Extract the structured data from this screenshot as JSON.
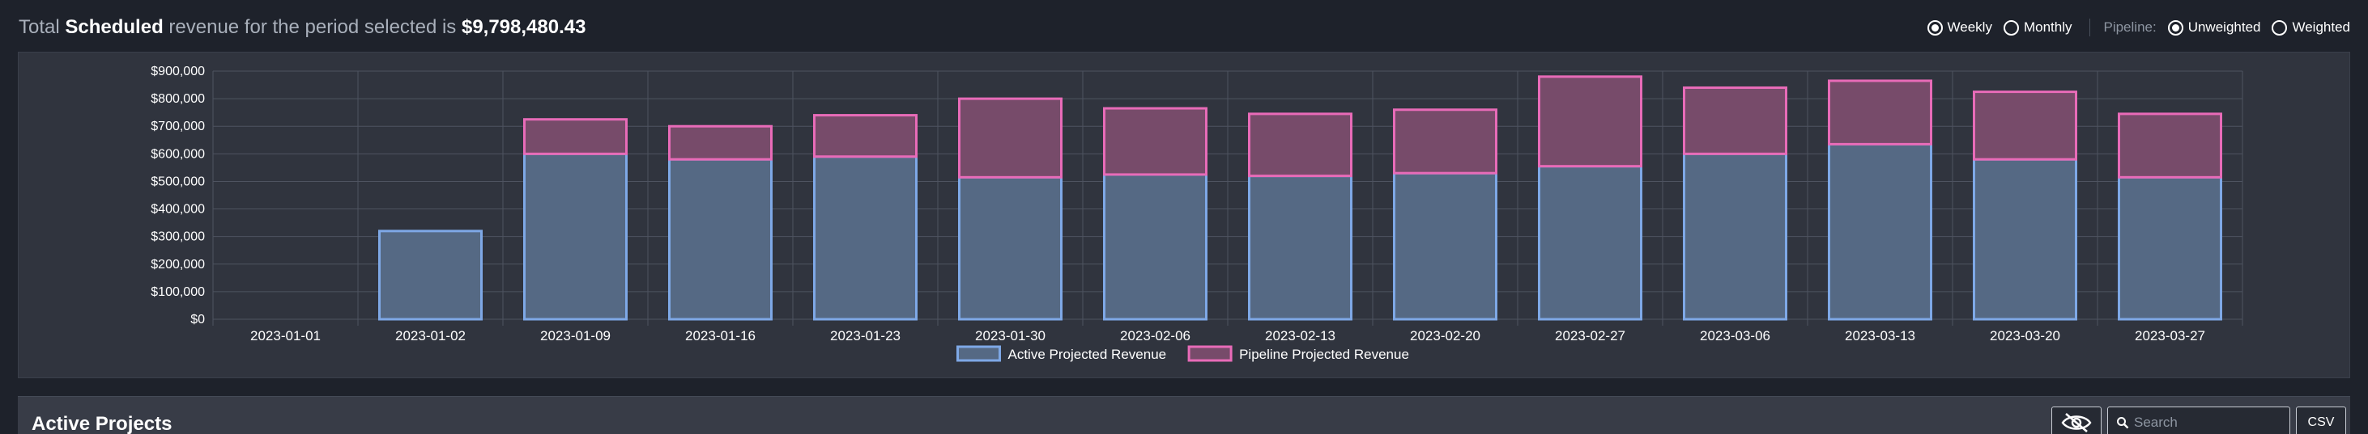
{
  "header": {
    "prefix": "Total",
    "emphasis": "Scheduled",
    "middle": "revenue for the period selected is",
    "total": "$9,798,480.43"
  },
  "period_options": [
    {
      "label": "Weekly",
      "checked": true
    },
    {
      "label": "Monthly",
      "checked": false
    }
  ],
  "pipeline": {
    "label": "Pipeline:",
    "options": [
      {
        "label": "Unweighted",
        "checked": true
      },
      {
        "label": "Weighted",
        "checked": false
      }
    ]
  },
  "chart_data": {
    "type": "bar",
    "stacked": true,
    "categories": [
      "2023-01-01",
      "2023-01-02",
      "2023-01-09",
      "2023-01-16",
      "2023-01-23",
      "2023-01-30",
      "2023-02-06",
      "2023-02-13",
      "2023-02-20",
      "2023-02-27",
      "2023-03-06",
      "2023-03-13",
      "2023-03-20",
      "2023-03-27"
    ],
    "series": [
      {
        "name": "Active Projected Revenue",
        "color": "#7ea8e6",
        "fill": "#556984",
        "values": [
          0,
          320000,
          600000,
          580000,
          590000,
          515000,
          525000,
          520000,
          530000,
          555000,
          600000,
          635000,
          580000,
          515000
        ]
      },
      {
        "name": "Pipeline Projected Revenue",
        "color": "#e86bb8",
        "fill": "#774b6a",
        "values": [
          0,
          0,
          125000,
          120000,
          150000,
          285000,
          240000,
          225000,
          230000,
          325000,
          240000,
          230000,
          245000,
          230000
        ]
      }
    ],
    "ylim": [
      0,
      900000
    ],
    "yticks": [
      "$0",
      "$100,000",
      "$200,000",
      "$300,000",
      "$400,000",
      "$500,000",
      "$600,000",
      "$700,000",
      "$800,000",
      "$900,000"
    ],
    "grid": true,
    "legend": "bottom-center"
  },
  "projects": {
    "title": "Active Projects",
    "search_placeholder": "Search",
    "csv_label": "CSV",
    "hide_icon": "eye-slash-icon",
    "search_icon": "search-icon"
  }
}
